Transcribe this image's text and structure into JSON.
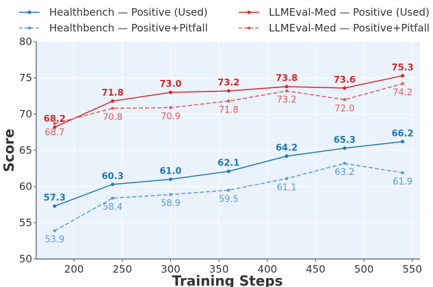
{
  "chart_data": {
    "type": "line",
    "title": "",
    "xlabel": "Training Steps",
    "ylabel": "Score",
    "xlim": [
      161,
      558
    ],
    "ylim": [
      50,
      80
    ],
    "xticks": [
      200,
      250,
      300,
      350,
      400,
      450,
      500,
      550
    ],
    "yticks": [
      50,
      55,
      60,
      65,
      70,
      75,
      80
    ],
    "grid": true,
    "legend_position": "top",
    "x": [
      180,
      240,
      300,
      360,
      420,
      480,
      540
    ],
    "series": [
      {
        "name": "Healthbench — Positive (Used)",
        "color": "#1f77b4",
        "style": "solid",
        "marker": "circle",
        "label_style": "bold-above",
        "values": [
          57.3,
          60.3,
          61.0,
          62.1,
          64.2,
          65.3,
          66.2
        ]
      },
      {
        "name": "Healthbench — Positive+Pitfall",
        "color": "#5b9bd0",
        "style": "dashed",
        "marker": "x",
        "label_style": "light-below",
        "values": [
          53.9,
          58.4,
          58.9,
          59.5,
          61.1,
          63.2,
          61.9
        ]
      },
      {
        "name": "LLMEval-Med — Positive (Used)",
        "color": "#d62728",
        "style": "solid",
        "marker": "circle",
        "label_style": "bold-above",
        "values": [
          68.2,
          71.8,
          73.0,
          73.2,
          73.8,
          73.6,
          75.3
        ]
      },
      {
        "name": "LLMEval-Med — Positive+Pitfall",
        "color": "#e05c5d",
        "style": "dashed",
        "marker": "x",
        "label_style": "light-below",
        "values": [
          68.7,
          70.8,
          70.9,
          71.8,
          73.2,
          72.0,
          74.2
        ]
      }
    ]
  },
  "theme": {
    "plot_background": "#eaf2fb",
    "grid_color": "#ffffff",
    "axis_color": "#555555"
  }
}
